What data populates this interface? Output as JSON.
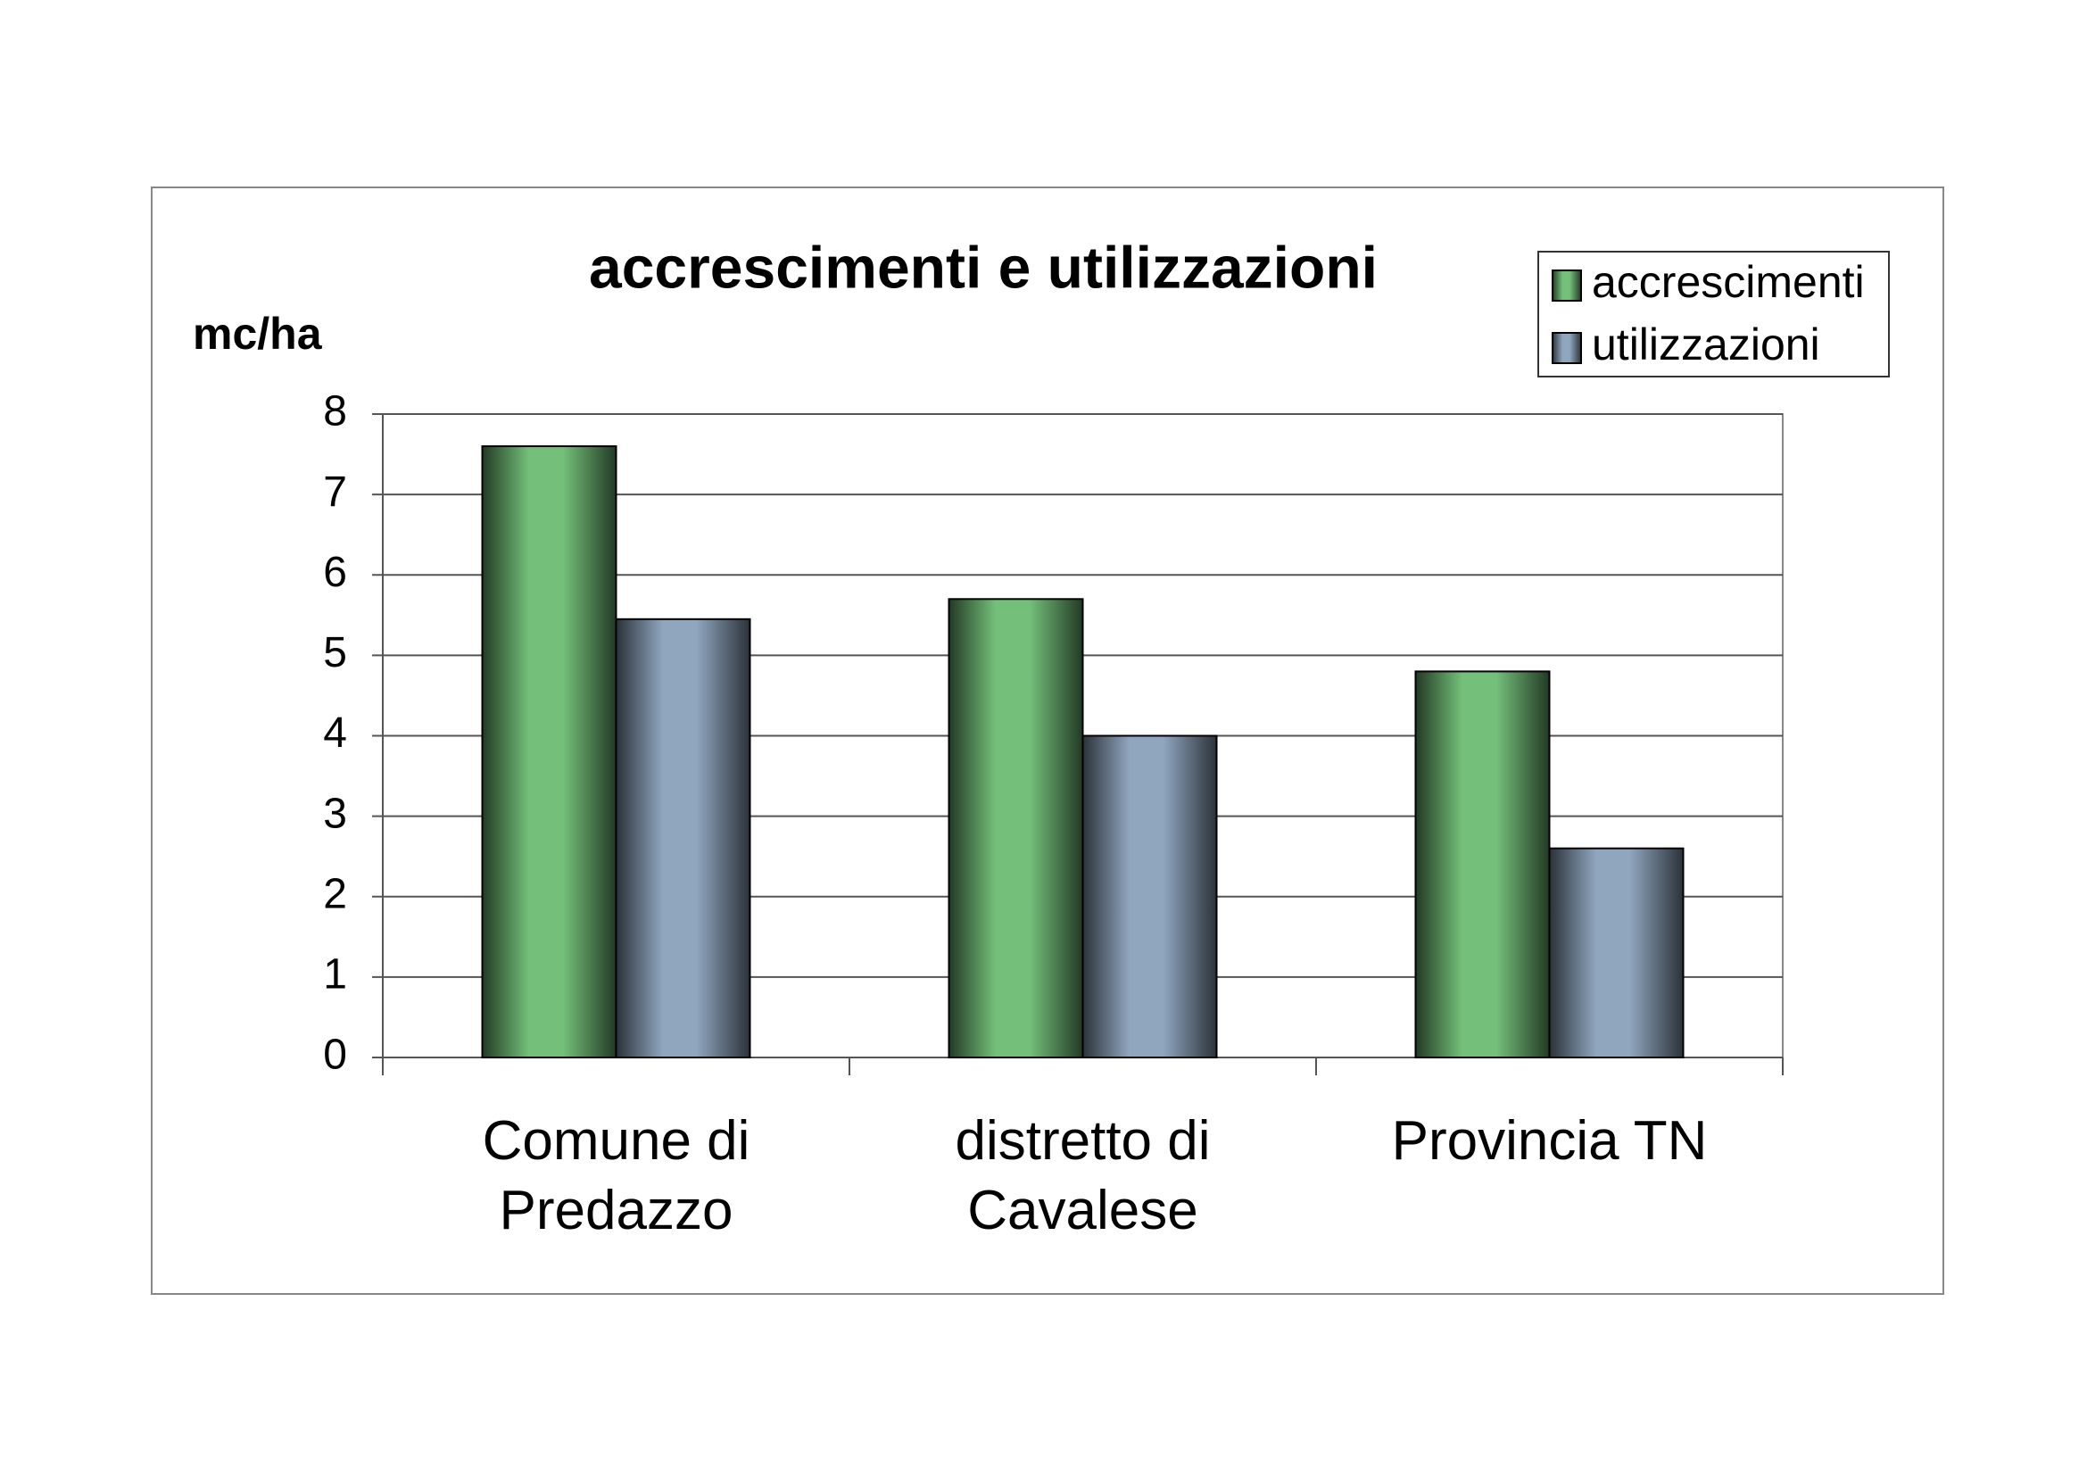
{
  "chart_data": {
    "type": "bar",
    "title": "accrescimenti e utilizzazioni",
    "y_label": "mc/ha",
    "categories": [
      "Comune di Predazzo",
      "distretto di Cavalese",
      "Provincia TN"
    ],
    "series": [
      {
        "name": "accrescimenti",
        "color": "#74c07a",
        "values": [
          7.6,
          5.7,
          4.8
        ]
      },
      {
        "name": "utilizzazioni",
        "color": "#90a6bf",
        "values": [
          5.45,
          4.0,
          2.6
        ]
      }
    ],
    "ylim": [
      0,
      8
    ],
    "yticks": [
      0,
      1,
      2,
      3,
      4,
      5,
      6,
      7,
      8
    ],
    "grid": true,
    "legend": "top-right"
  }
}
